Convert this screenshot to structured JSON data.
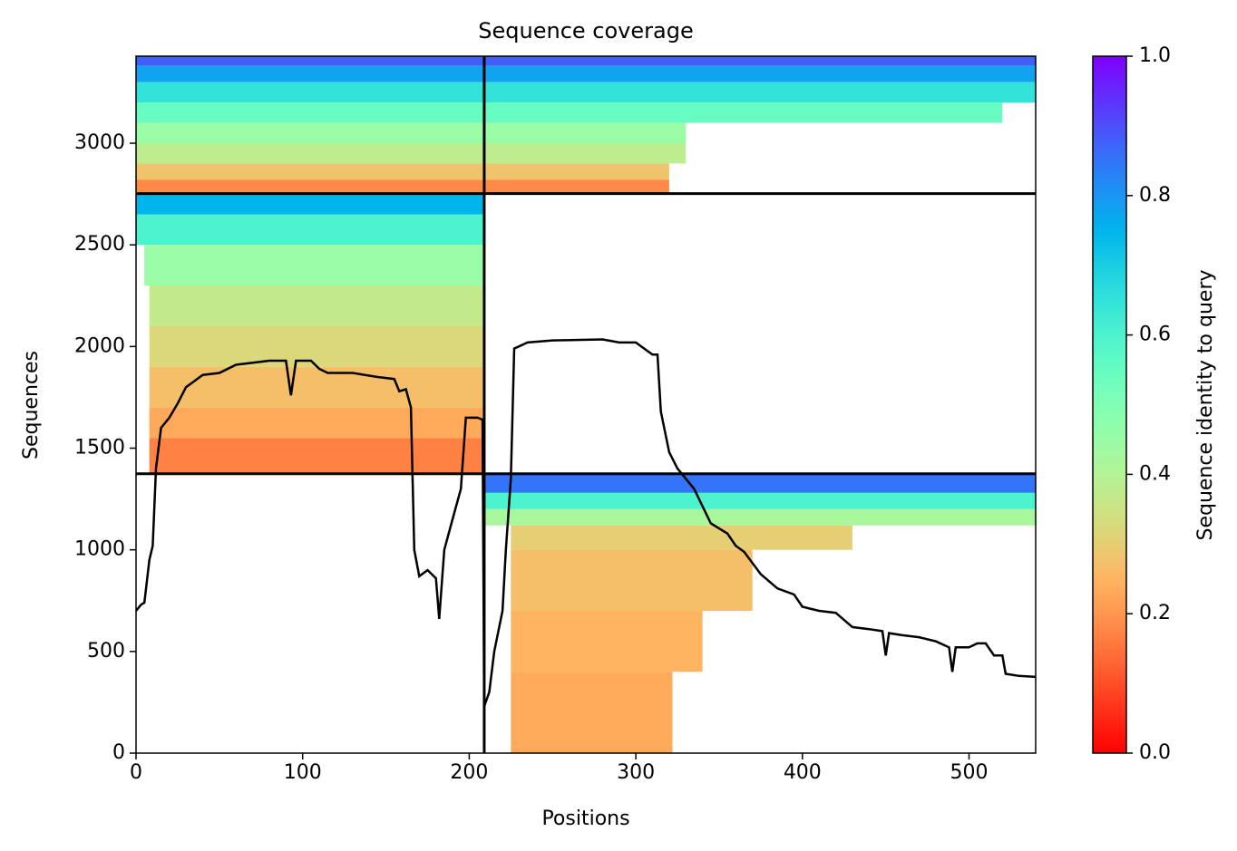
{
  "chart_data": {
    "type": "coverage",
    "title": "Sequence coverage",
    "x_label": "Positions",
    "y_label": "Sequences",
    "xlim": [
      0,
      540
    ],
    "xticks": [
      0,
      100,
      200,
      300,
      400,
      500
    ],
    "ylim": [
      0,
      3428
    ],
    "yticks": [
      0,
      500,
      1000,
      1500,
      2000,
      2500,
      3000
    ],
    "cmap": "rainbow_r",
    "colorbar_label": "Sequence identity to query",
    "clim": [
      0,
      1
    ],
    "cticks": [
      {
        "value": 0,
        "label": "0.0"
      },
      0.2,
      0.4,
      0.6,
      0.8,
      {
        "value": 1,
        "label": "1.0"
      }
    ],
    "boundaries": {
      "x": [
        209
      ],
      "y": [
        1374,
        2752
      ],
      "color": "#000000"
    },
    "heatmap": [
      {
        "x": [
          0,
          540
        ],
        "y": [
          3380,
          3428
        ],
        "value": 0.88
      },
      {
        "x": [
          0,
          540
        ],
        "y": [
          3300,
          3380
        ],
        "value": 0.78
      },
      {
        "x": [
          0,
          540
        ],
        "y": [
          3200,
          3300
        ],
        "value": 0.65
      },
      {
        "x": [
          0,
          520
        ],
        "y": [
          3100,
          3200
        ],
        "value": 0.55
      },
      {
        "x": [
          0,
          330
        ],
        "y": [
          3000,
          3100
        ],
        "value": 0.45
      },
      {
        "x": [
          0,
          330
        ],
        "y": [
          2900,
          3000
        ],
        "value": 0.38
      },
      {
        "x": [
          0,
          320
        ],
        "y": [
          2820,
          2900
        ],
        "value": 0.28
      },
      {
        "x": [
          0,
          320
        ],
        "y": [
          2752,
          2820
        ],
        "value": 0.18
      },
      {
        "x": [
          0,
          209
        ],
        "y": [
          2650,
          2752
        ],
        "value": 0.75
      },
      {
        "x": [
          0,
          209
        ],
        "y": [
          2500,
          2650
        ],
        "value": 0.6
      },
      {
        "x": [
          5,
          209
        ],
        "y": [
          2300,
          2500
        ],
        "value": 0.45
      },
      {
        "x": [
          8,
          209
        ],
        "y": [
          2100,
          2300
        ],
        "value": 0.37
      },
      {
        "x": [
          8,
          209
        ],
        "y": [
          1900,
          2100
        ],
        "value": 0.32
      },
      {
        "x": [
          8,
          209
        ],
        "y": [
          1700,
          1900
        ],
        "value": 0.27
      },
      {
        "x": [
          8,
          209
        ],
        "y": [
          1550,
          1700
        ],
        "value": 0.23
      },
      {
        "x": [
          8,
          209
        ],
        "y": [
          1374,
          1550
        ],
        "value": 0.17
      },
      {
        "x": [
          209,
          540
        ],
        "y": [
          1280,
          1374
        ],
        "value": 0.85
      },
      {
        "x": [
          209,
          540
        ],
        "y": [
          1200,
          1280
        ],
        "value": 0.6
      },
      {
        "x": [
          209,
          540
        ],
        "y": [
          1120,
          1200
        ],
        "value": 0.42
      },
      {
        "x": [
          225,
          430
        ],
        "y": [
          1000,
          1120
        ],
        "value": 0.3
      },
      {
        "x": [
          225,
          370
        ],
        "y": [
          700,
          1000
        ],
        "value": 0.27
      },
      {
        "x": [
          225,
          340
        ],
        "y": [
          400,
          700
        ],
        "value": 0.25
      },
      {
        "x": [
          225,
          322
        ],
        "y": [
          0,
          400
        ],
        "value": 0.23
      }
    ],
    "line": {
      "color": "#000000",
      "x": [
        0,
        3,
        5,
        8,
        10,
        12,
        15,
        20,
        25,
        30,
        35,
        40,
        50,
        60,
        70,
        80,
        90,
        93,
        96,
        105,
        110,
        115,
        130,
        145,
        155,
        158,
        162,
        165,
        167,
        170,
        175,
        180,
        182,
        185,
        190,
        195,
        198,
        205,
        208,
        209,
        212,
        215,
        220,
        222,
        225,
        227,
        235,
        250,
        280,
        290,
        300,
        305,
        310,
        313,
        315,
        320,
        325,
        335,
        345,
        355,
        360,
        365,
        375,
        385,
        395,
        400,
        410,
        420,
        430,
        440,
        448,
        450,
        452,
        460,
        470,
        480,
        488,
        490,
        492,
        500,
        505,
        510,
        515,
        520,
        522,
        530,
        540
      ],
      "values": [
        700,
        730,
        740,
        950,
        1020,
        1400,
        1600,
        1650,
        1720,
        1800,
        1830,
        1860,
        1870,
        1910,
        1920,
        1930,
        1930,
        1760,
        1930,
        1930,
        1890,
        1870,
        1870,
        1850,
        1840,
        1780,
        1790,
        1700,
        1000,
        870,
        900,
        860,
        660,
        1000,
        1150,
        1300,
        1650,
        1650,
        1640,
        230,
        300,
        500,
        700,
        1000,
        1350,
        1990,
        2020,
        2030,
        2035,
        2020,
        2020,
        1990,
        1960,
        1960,
        1680,
        1480,
        1400,
        1300,
        1130,
        1080,
        1020,
        990,
        880,
        810,
        780,
        720,
        700,
        690,
        620,
        610,
        600,
        480,
        590,
        580,
        570,
        550,
        520,
        400,
        520,
        520,
        540,
        540,
        480,
        480,
        390,
        380,
        375
      ]
    }
  }
}
